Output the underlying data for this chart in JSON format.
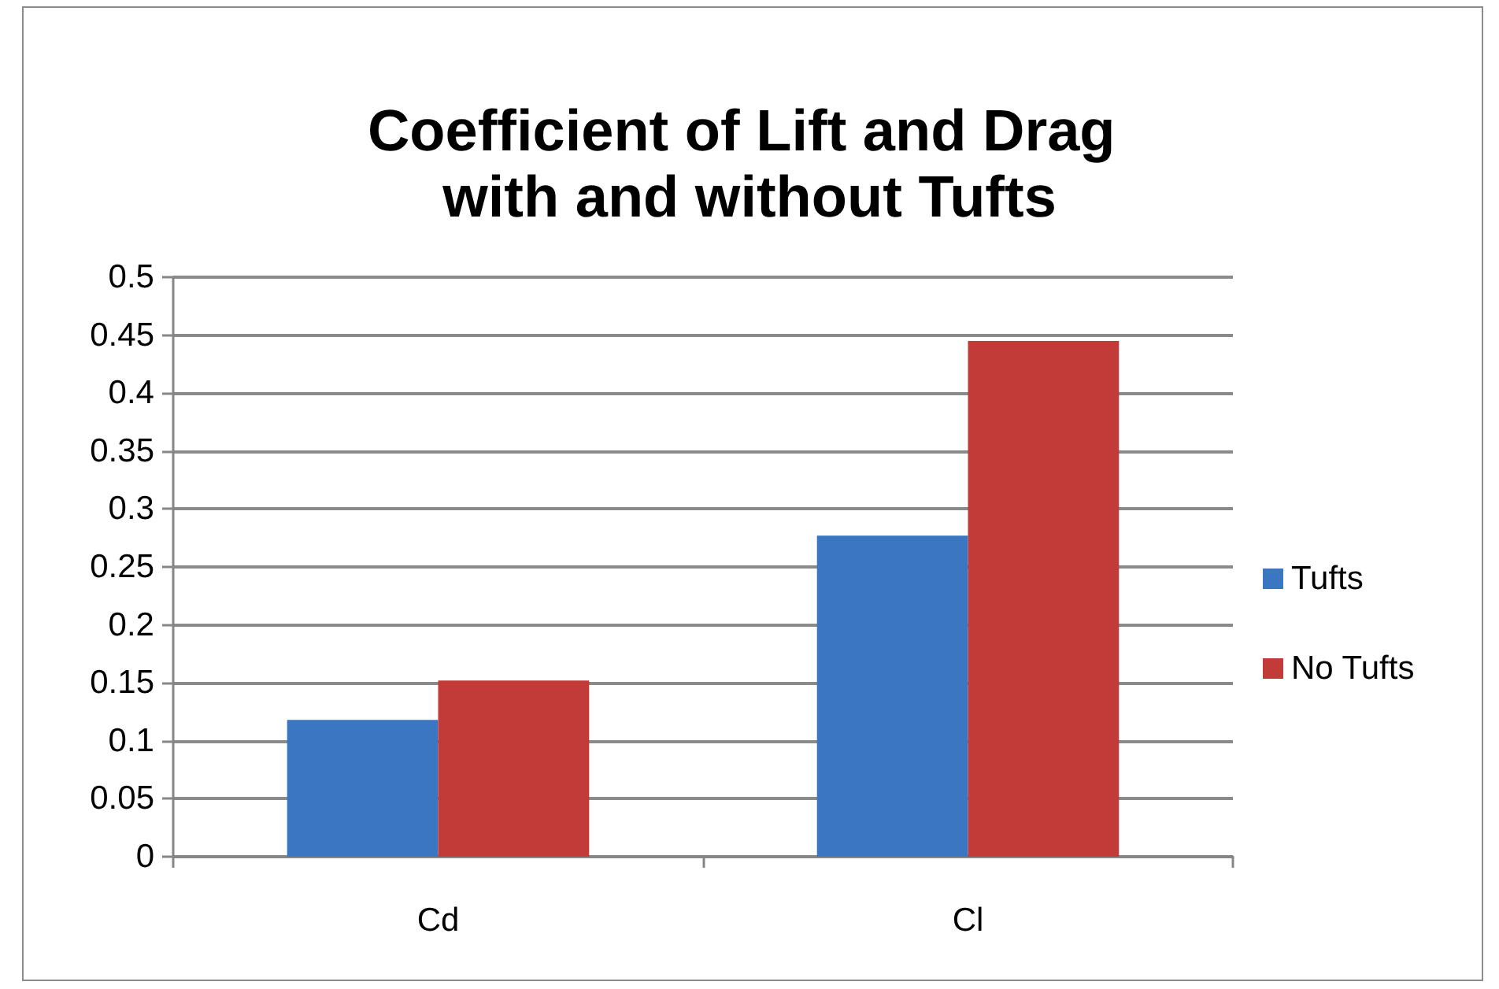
{
  "chart_data": {
    "type": "bar",
    "title": "Coefficient of Lift and Drag with and without Tufts",
    "categories": [
      "Cd",
      "Cl"
    ],
    "series": [
      {
        "name": "Tufts",
        "color": "#3a76c2",
        "values": [
          0.118,
          0.277
        ]
      },
      {
        "name": "No Tufts",
        "color": "#c23b38",
        "values": [
          0.152,
          0.445
        ]
      }
    ],
    "ylim": [
      0,
      0.5
    ],
    "yticks": [
      0,
      0.05,
      0.1,
      0.15,
      0.2,
      0.25,
      0.3,
      0.35,
      0.4,
      0.45,
      0.5
    ],
    "grid": true,
    "legend": "right"
  }
}
